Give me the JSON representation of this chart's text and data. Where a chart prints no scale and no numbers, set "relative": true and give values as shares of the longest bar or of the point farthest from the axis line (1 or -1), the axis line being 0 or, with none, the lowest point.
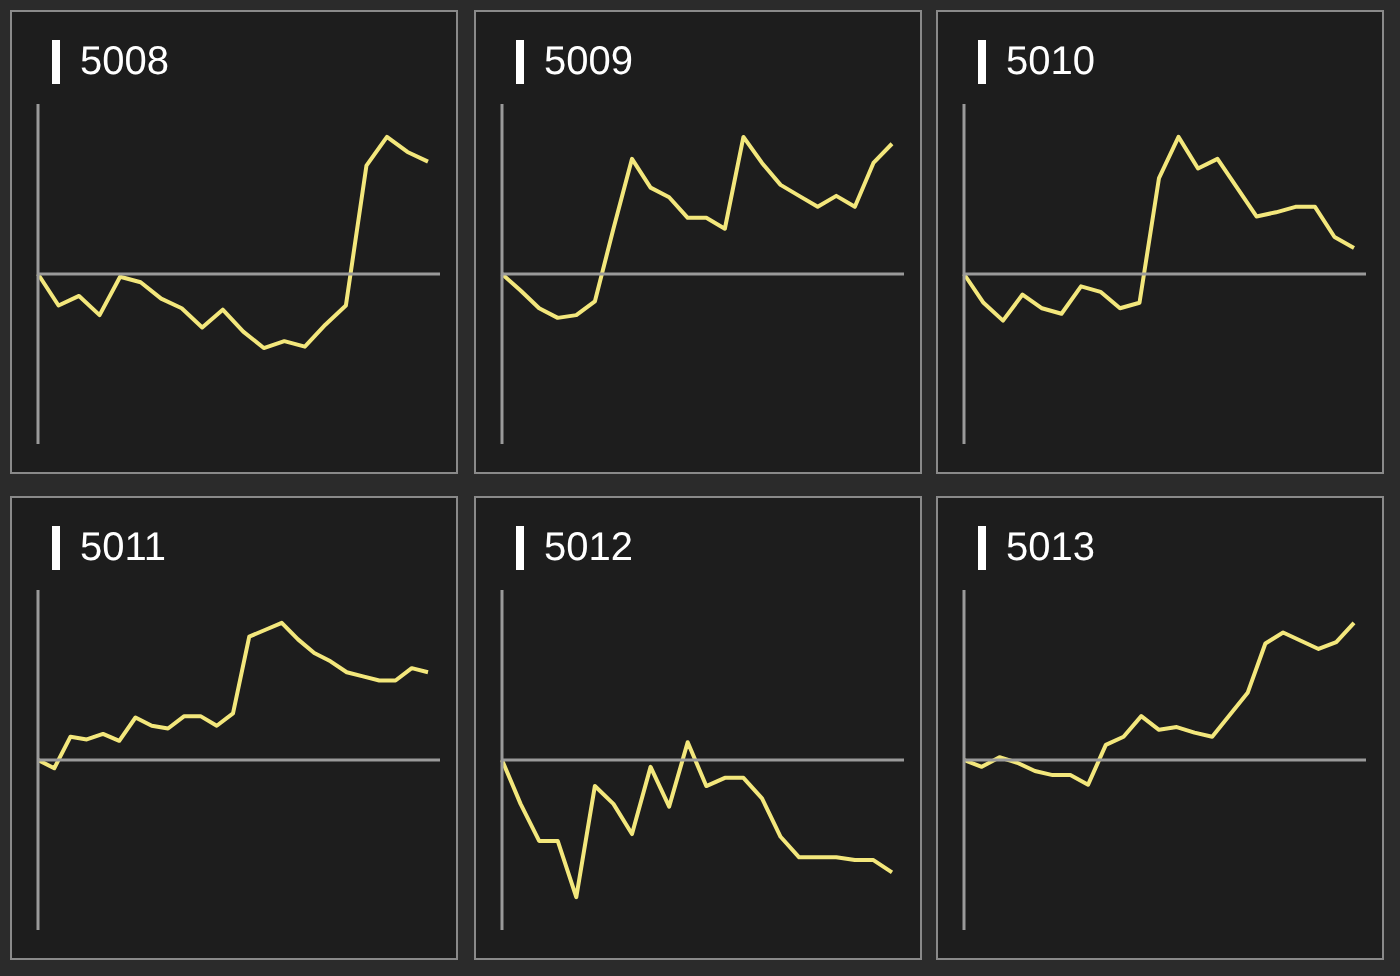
{
  "chart_data": [
    {
      "type": "line",
      "title": "5008",
      "relative": true,
      "color": "#f3e77c",
      "categories": [
        null,
        null,
        null,
        null,
        null,
        null,
        null,
        null,
        null,
        null,
        null,
        null,
        null,
        null,
        null,
        null,
        null,
        null,
        null,
        null
      ],
      "values": [
        0,
        -0.23,
        -0.16,
        -0.3,
        -0.02,
        -0.06,
        -0.18,
        -0.25,
        -0.39,
        -0.26,
        -0.42,
        -0.54,
        -0.49,
        -0.53,
        -0.37,
        -0.23,
        0.79,
        1,
        0.89,
        0.82
      ]
    },
    {
      "type": "line",
      "title": "5009",
      "relative": true,
      "color": "#f3e77c",
      "categories": [
        null,
        null,
        null,
        null,
        null,
        null,
        null,
        null,
        null,
        null,
        null,
        null,
        null,
        null,
        null,
        null,
        null,
        null,
        null,
        null,
        null,
        null
      ],
      "values": [
        0,
        -0.12,
        -0.25,
        -0.32,
        -0.3,
        -0.2,
        0.33,
        0.84,
        0.63,
        0.56,
        0.41,
        0.41,
        0.33,
        1,
        0.81,
        0.65,
        0.57,
        0.49,
        0.57,
        0.49,
        0.81,
        0.95
      ]
    },
    {
      "type": "line",
      "title": "5010",
      "relative": true,
      "color": "#f3e77c",
      "categories": [
        null,
        null,
        null,
        null,
        null,
        null,
        null,
        null,
        null,
        null,
        null,
        null,
        null,
        null,
        null,
        null,
        null,
        null,
        null,
        null,
        null
      ],
      "values": [
        0,
        -0.21,
        -0.34,
        -0.15,
        -0.25,
        -0.29,
        -0.09,
        -0.13,
        -0.25,
        -0.21,
        0.7,
        1,
        0.77,
        0.84,
        0.63,
        0.42,
        0.45,
        0.49,
        0.49,
        0.27,
        0.19
      ]
    },
    {
      "type": "line",
      "title": "5011",
      "relative": true,
      "color": "#f3e77c",
      "categories": [
        null,
        null,
        null,
        null,
        null,
        null,
        null,
        null,
        null,
        null,
        null,
        null,
        null,
        null,
        null,
        null,
        null,
        null,
        null,
        null,
        null,
        null,
        null,
        null,
        null
      ],
      "values": [
        0,
        -0.06,
        0.17,
        0.15,
        0.19,
        0.14,
        0.31,
        0.25,
        0.23,
        0.32,
        0.32,
        0.25,
        0.34,
        0.9,
        0.95,
        1,
        0.88,
        0.78,
        0.72,
        0.64,
        0.61,
        0.58,
        0.58,
        0.67,
        0.64
      ]
    },
    {
      "type": "line",
      "title": "5012",
      "relative": true,
      "color": "#f3e77c",
      "categories": [
        null,
        null,
        null,
        null,
        null,
        null,
        null,
        null,
        null,
        null,
        null,
        null,
        null,
        null,
        null,
        null,
        null,
        null,
        null,
        null,
        null,
        null
      ],
      "values": [
        0,
        -0.32,
        -0.59,
        -0.59,
        -1,
        -0.19,
        -0.32,
        -0.54,
        -0.05,
        -0.34,
        0.13,
        -0.19,
        -0.13,
        -0.13,
        -0.28,
        -0.56,
        -0.71,
        -0.71,
        -0.71,
        -0.73,
        -0.73,
        -0.82
      ]
    },
    {
      "type": "line",
      "title": "5013",
      "relative": true,
      "color": "#f3e77c",
      "categories": [
        null,
        null,
        null,
        null,
        null,
        null,
        null,
        null,
        null,
        null,
        null,
        null,
        null,
        null,
        null,
        null,
        null,
        null,
        null,
        null,
        null,
        null,
        null
      ],
      "values": [
        0,
        -0.05,
        0.02,
        -0.02,
        -0.08,
        -0.11,
        -0.11,
        -0.18,
        0.11,
        0.17,
        0.32,
        0.22,
        0.24,
        0.2,
        0.17,
        0.33,
        0.49,
        0.85,
        0.93,
        0.87,
        0.81,
        0.86,
        1
      ]
    }
  ]
}
